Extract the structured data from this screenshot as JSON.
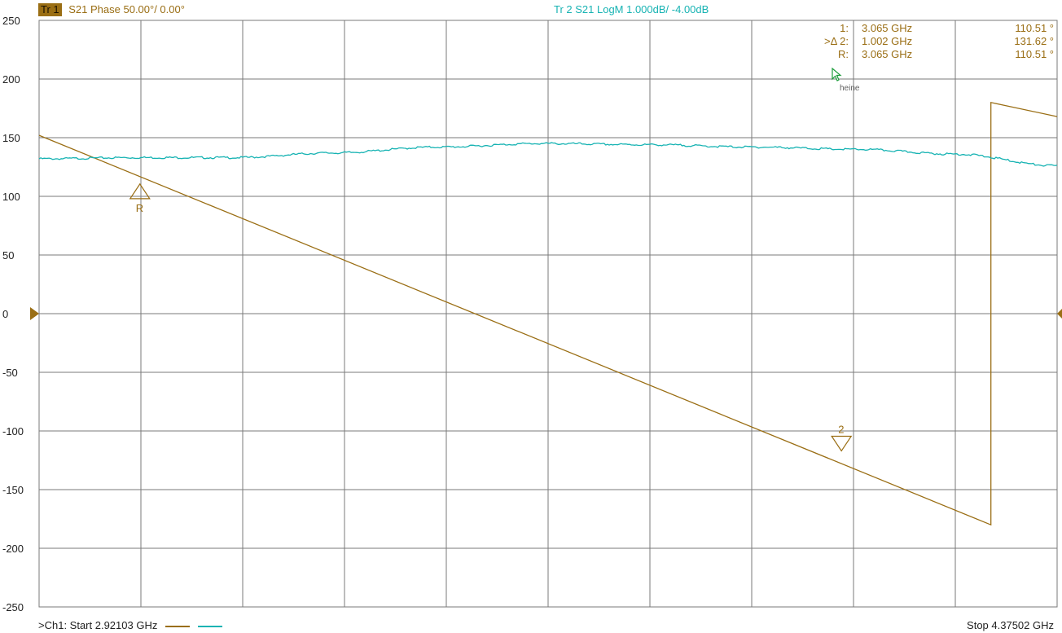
{
  "colors": {
    "trace1": "#9a6e14",
    "trace2": "#17b3b3",
    "grid": "#7a7a7a",
    "badge_bg": "#9a6e14",
    "text": "#222222"
  },
  "header": {
    "tr1_badge": "Tr 1",
    "tr1_text": "S21 Phase 50.00°/  0.00°",
    "tr2_text": "Tr 2  S21 LogM 1.000dB/  -4.00dB"
  },
  "markers_table": [
    {
      "label": "1:",
      "freq": "3.065  GHz",
      "value": "110.51 °"
    },
    {
      "label": ">Δ 2:",
      "freq": "1.002  GHz",
      "value": "131.62 °"
    },
    {
      "label": "R:",
      "freq": "3.065  GHz",
      "value": "110.51 °"
    }
  ],
  "footer": {
    "start": ">Ch1:  Start  2.92103 GHz",
    "stop": "Stop  4.37502 GHz"
  },
  "cursor_label": "heine",
  "chart_data": {
    "type": "line",
    "x_range_ghz": [
      2.92103,
      4.37502
    ],
    "ylim": [
      -250,
      250
    ],
    "ytick_step": 50,
    "x_divisions": 10,
    "y_divisions": 10,
    "grid": true,
    "reference_level": 0,
    "yticks": [
      "250",
      "200",
      "150",
      "100",
      "50",
      "0",
      "-50",
      "-100",
      "-150",
      "-200",
      "-250"
    ],
    "series": [
      {
        "trace": "Tr 1",
        "x": [
          2.92103,
          4.2805,
          4.2805,
          4.37502
        ],
        "y": [
          152,
          -180,
          180,
          168
        ]
      },
      {
        "trace": "Tr 2",
        "x": [
          2.92103,
          3.06,
          3.2,
          3.34,
          3.49,
          3.64,
          3.79,
          3.94,
          4.09,
          4.23,
          4.37502
        ],
        "y": [
          132,
          133,
          133,
          137,
          142,
          145,
          144,
          142,
          140,
          136,
          126
        ]
      }
    ],
    "markers": [
      {
        "label": "R",
        "x": 3.065,
        "y": 110.51,
        "direction": "up"
      },
      {
        "label": "2",
        "x": 4.067,
        "y": -117,
        "direction": "down"
      }
    ]
  }
}
